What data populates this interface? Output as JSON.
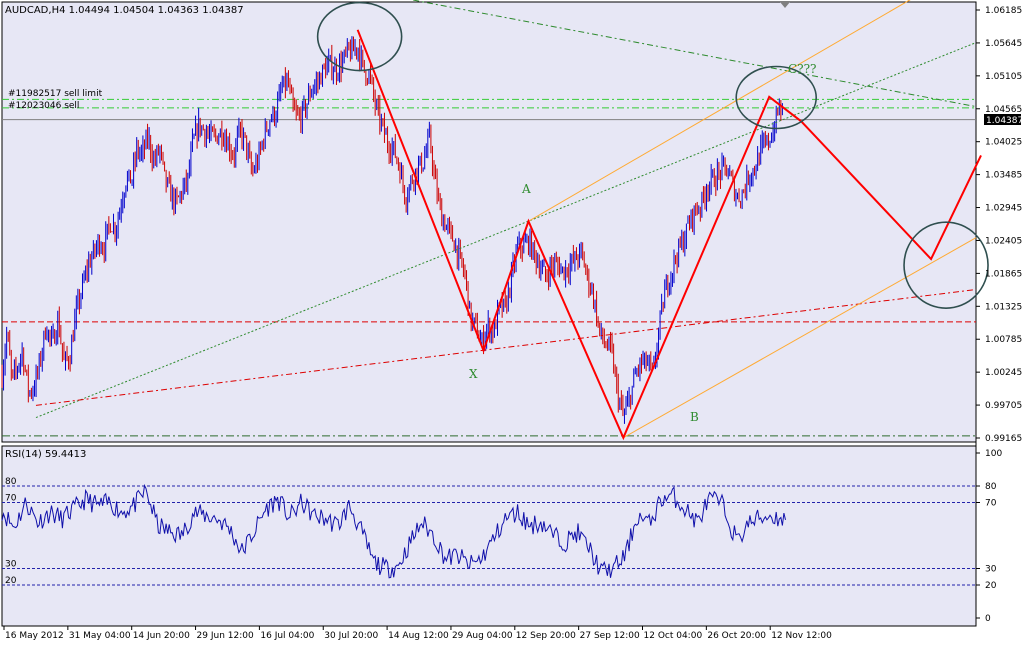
{
  "window": {
    "symbol_line": "AUDCAD,H4  1.04494 1.04504 1.04363 1.04387",
    "indicator_title": "RSI(14) 59.4413"
  },
  "orders": [
    {
      "label": "#11982517 sell limit",
      "price": 1.0472
    },
    {
      "label": "#12023046 sell",
      "price": 1.0458
    }
  ],
  "chart_data": [
    {
      "type": "line",
      "subtype": "candlestick price chart",
      "symbol": "AUDCAD",
      "timeframe": "H4",
      "ohlc_last": {
        "open": 1.04494,
        "high": 1.04504,
        "low": 1.04363,
        "close": 1.04387
      },
      "current_price": 1.04387,
      "price_label": "1.04387",
      "ylim": [
        0.9895,
        1.0642
      ],
      "y_ticks": [
        "1.06185",
        "1.05645",
        "1.05105",
        "1.04565",
        "1.04025",
        "1.03485",
        "1.02945",
        "1.02405",
        "1.01865",
        "1.01325",
        "1.00785",
        "1.00245",
        "0.99705",
        "0.99165"
      ],
      "x_ticks": [
        "16 May 2012",
        "31 May 04:00",
        "14 Jun 20:00",
        "29 Jun 12:00",
        "16 Jul 04:00",
        "30 Jul 20:00",
        "14 Aug 12:00",
        "29 Aug 04:00",
        "12 Sep 20:00",
        "27 Sep 12:00",
        "12 Oct 04:00",
        "26 Oct 20:00",
        "12 Nov 12:00"
      ],
      "price_path": [
        [
          0,
          1.002
        ],
        [
          5,
          1.009
        ],
        [
          10,
          1.001
        ],
        [
          15,
          1.003
        ],
        [
          20,
          1.006
        ],
        [
          27,
          0.999
        ],
        [
          32,
          1.0
        ],
        [
          38,
          1.004
        ],
        [
          44,
          1.01
        ],
        [
          50,
          1.007
        ],
        [
          56,
          1.011
        ],
        [
          62,
          1.004
        ],
        [
          68,
          1.005
        ],
        [
          74,
          1.012
        ],
        [
          80,
          1.016
        ],
        [
          86,
          1.02
        ],
        [
          92,
          1.022
        ],
        [
          97,
          1.024
        ],
        [
          102,
          1.023
        ],
        [
          108,
          1.027
        ],
        [
          114,
          1.026
        ],
        [
          119,
          1.03
        ],
        [
          124,
          1.034
        ],
        [
          130,
          1.034
        ],
        [
          135,
          1.039
        ],
        [
          140,
          1.038
        ],
        [
          146,
          1.041
        ],
        [
          152,
          1.037
        ],
        [
          158,
          1.039
        ],
        [
          163,
          1.034
        ],
        [
          168,
          1.032
        ],
        [
          174,
          1.03
        ],
        [
          180,
          1.032
        ],
        [
          186,
          1.034
        ],
        [
          191,
          1.04
        ],
        [
          197,
          1.043
        ],
        [
          203,
          1.042
        ],
        [
          208,
          1.041
        ],
        [
          214,
          1.041
        ],
        [
          220,
          1.042
        ],
        [
          226,
          1.04
        ],
        [
          232,
          1.038
        ],
        [
          238,
          1.042
        ],
        [
          244,
          1.04
        ],
        [
          250,
          1.035
        ],
        [
          256,
          1.037
        ],
        [
          262,
          1.041
        ],
        [
          268,
          1.044
        ],
        [
          274,
          1.045
        ],
        [
          280,
          1.049
        ],
        [
          286,
          1.05
        ],
        [
          292,
          1.045
        ],
        [
          298,
          1.044
        ],
        [
          304,
          1.046
        ],
        [
          310,
          1.049
        ],
        [
          316,
          1.05
        ],
        [
          322,
          1.052
        ],
        [
          328,
          1.053
        ],
        [
          334,
          1.052
        ],
        [
          340,
          1.053
        ],
        [
          346,
          1.055
        ],
        [
          351,
          1.055
        ],
        [
          356,
          1.056
        ],
        [
          362,
          1.052
        ],
        [
          368,
          1.051
        ],
        [
          374,
          1.046
        ],
        [
          380,
          1.043
        ],
        [
          386,
          1.04
        ],
        [
          392,
          1.039
        ],
        [
          398,
          1.036
        ],
        [
          404,
          1.031
        ],
        [
          410,
          1.034
        ],
        [
          416,
          1.036
        ],
        [
          422,
          1.037
        ],
        [
          428,
          1.041
        ],
        [
          434,
          1.033
        ],
        [
          440,
          1.028
        ],
        [
          446,
          1.026
        ],
        [
          452,
          1.024
        ],
        [
          458,
          1.021
        ],
        [
          464,
          1.018
        ],
        [
          469,
          1.011
        ],
        [
          474,
          1.01
        ],
        [
          480,
          1.007
        ],
        [
          486,
          1.01
        ],
        [
          492,
          1.009
        ],
        [
          498,
          1.013
        ],
        [
          504,
          1.013
        ],
        [
          510,
          1.018
        ],
        [
          516,
          1.023
        ],
        [
          522,
          1.023
        ],
        [
          527,
          1.024
        ],
        [
          532,
          1.022
        ],
        [
          538,
          1.02
        ],
        [
          544,
          1.018
        ],
        [
          550,
          1.02
        ],
        [
          556,
          1.02
        ],
        [
          562,
          1.019
        ],
        [
          568,
          1.02
        ],
        [
          574,
          1.021
        ],
        [
          580,
          1.022
        ],
        [
          586,
          1.018
        ],
        [
          592,
          1.015
        ],
        [
          598,
          1.009
        ],
        [
          604,
          1.007
        ],
        [
          610,
          1.006
        ],
        [
          616,
          0.999
        ],
        [
          622,
          0.995
        ],
        [
          628,
          0.998
        ],
        [
          634,
          1.002
        ],
        [
          640,
          1.004
        ],
        [
          646,
          1.004
        ],
        [
          652,
          1.002
        ],
        [
          658,
          1.01
        ],
        [
          664,
          1.016
        ],
        [
          670,
          1.019
        ],
        [
          676,
          1.022
        ],
        [
          682,
          1.024
        ],
        [
          688,
          1.027
        ],
        [
          694,
          1.029
        ],
        [
          700,
          1.03
        ],
        [
          706,
          1.033
        ],
        [
          712,
          1.034
        ],
        [
          718,
          1.035
        ],
        [
          724,
          1.036
        ],
        [
          730,
          1.034
        ],
        [
          736,
          1.031
        ],
        [
          742,
          1.032
        ],
        [
          748,
          1.035
        ],
        [
          754,
          1.036
        ],
        [
          760,
          1.039
        ],
        [
          766,
          1.04
        ],
        [
          772,
          1.042
        ],
        [
          778,
          1.046
        ],
        [
          782,
          1.0445
        ]
      ]
    },
    {
      "type": "line",
      "subtype": "indicator",
      "name": "RSI(14)",
      "last_value": 59.4413,
      "ylim": [
        0,
        100
      ],
      "levels": [
        80,
        70,
        30,
        20
      ],
      "y_ticks": [
        "100",
        "80",
        "70",
        "30",
        "20",
        "0"
      ],
      "rsi_path": [
        [
          0,
          65
        ],
        [
          12,
          55
        ],
        [
          24,
          70
        ],
        [
          36,
          58
        ],
        [
          48,
          64
        ],
        [
          60,
          60
        ],
        [
          72,
          66
        ],
        [
          84,
          72
        ],
        [
          96,
          68
        ],
        [
          108,
          70
        ],
        [
          120,
          64
        ],
        [
          132,
          68
        ],
        [
          144,
          77
        ],
        [
          156,
          56
        ],
        [
          168,
          52
        ],
        [
          180,
          50
        ],
        [
          192,
          64
        ],
        [
          204,
          62
        ],
        [
          216,
          60
        ],
        [
          228,
          54
        ],
        [
          240,
          40
        ],
        [
          252,
          52
        ],
        [
          264,
          66
        ],
        [
          276,
          72
        ],
        [
          288,
          61
        ],
        [
          300,
          70
        ],
        [
          312,
          62
        ],
        [
          324,
          60
        ],
        [
          336,
          56
        ],
        [
          348,
          68
        ],
        [
          360,
          52
        ],
        [
          372,
          34
        ],
        [
          384,
          30
        ],
        [
          396,
          31
        ],
        [
          408,
          45
        ],
        [
          420,
          58
        ],
        [
          432,
          50
        ],
        [
          444,
          36
        ],
        [
          456,
          38
        ],
        [
          468,
          32
        ],
        [
          480,
          36
        ],
        [
          492,
          48
        ],
        [
          504,
          60
        ],
        [
          516,
          64
        ],
        [
          528,
          56
        ],
        [
          540,
          58
        ],
        [
          552,
          50
        ],
        [
          564,
          46
        ],
        [
          576,
          52
        ],
        [
          588,
          42
        ],
        [
          600,
          28
        ],
        [
          612,
          30
        ],
        [
          624,
          38
        ],
        [
          636,
          62
        ],
        [
          648,
          57
        ],
        [
          660,
          72
        ],
        [
          672,
          74
        ],
        [
          684,
          66
        ],
        [
          696,
          58
        ],
        [
          708,
          72
        ],
        [
          720,
          70
        ],
        [
          732,
          52
        ],
        [
          738,
          46
        ],
        [
          744,
          56
        ],
        [
          756,
          60
        ],
        [
          768,
          62
        ],
        [
          780,
          60
        ],
        [
          785,
          59.4
        ]
      ]
    }
  ],
  "annotations": {
    "point_labels": [
      "A",
      "X",
      "B",
      "C???"
    ],
    "colors": {
      "bull": "#0000cc",
      "bear": "#cc0000",
      "zigzag": "#ff0000",
      "channel": "#ffaa33",
      "trend_green": "#2e8b57",
      "level_red": "#dd0000",
      "circle": "#2f4f4f",
      "background": "#e7e7f5",
      "rsi_line": "#1010aa"
    }
  }
}
